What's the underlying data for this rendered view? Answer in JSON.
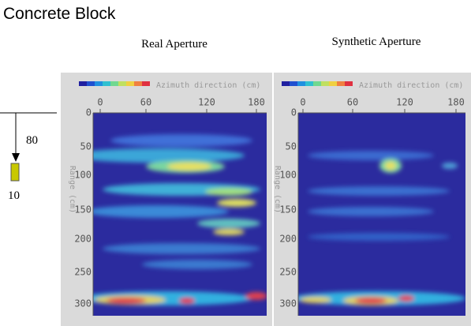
{
  "title": "Concrete Block",
  "diagram": {
    "depth": "80",
    "size": "10"
  },
  "panels": [
    {
      "title": "Real Aperture",
      "x_axis_label": "Azimuth direction (cm)",
      "y_axis_label": "Range (cm)",
      "xticks": [
        "0",
        "60",
        "120",
        "180"
      ],
      "yticks": [
        "0",
        "50",
        "100",
        "150",
        "200",
        "250",
        "300"
      ]
    },
    {
      "title": "Synthetic Aperture",
      "x_axis_label": "Azimuth direction (cm)",
      "y_axis_label": "Range (cm)",
      "xticks": [
        "0",
        "60",
        "120",
        "180"
      ],
      "yticks": [
        "0",
        "50",
        "100",
        "150",
        "200",
        "250",
        "300"
      ]
    }
  ]
}
